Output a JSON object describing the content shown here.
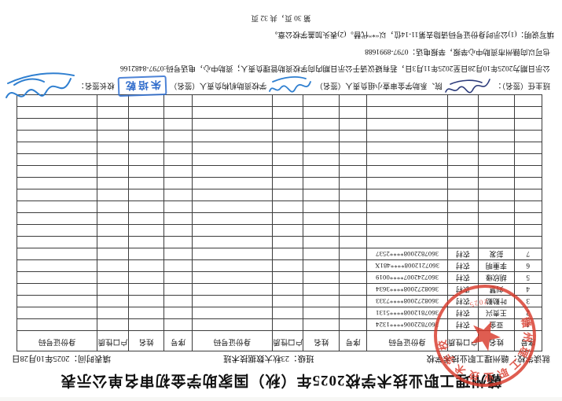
{
  "title": "赣州理工职业技术学校2025年（秋）国家助学金初审名单公示表",
  "meta": {
    "school_label": "就读学校：",
    "school": "赣州理工职业技术学校",
    "class_label": "班级：",
    "class_name": "23秋大数据技术班",
    "date_label": "填表时间：",
    "date": "2025年10月28日"
  },
  "table": {
    "columns": [
      "序号",
      "姓名",
      "户口性质",
      "身份证号码"
    ],
    "group_count": 3,
    "row_count": 20,
    "students": [
      {
        "no": "1",
        "name": "亚金",
        "hukou": "农村",
        "id_number": "3607822006****1324"
      },
      {
        "no": "2",
        "name": "王贵兴",
        "hukou": "农村",
        "id_number": "3607812008****5131"
      },
      {
        "no": "3",
        "name": "叶勤勤",
        "hukou": "农村",
        "id_number": "3608272008****7333"
      },
      {
        "no": "4",
        "name": "刘慧",
        "hukou": "农村",
        "id_number": "3608272008****3634"
      },
      {
        "no": "5",
        "name": "胡欣缘",
        "hukou": "农村",
        "id_number": "3607242007****0019"
      },
      {
        "no": "6",
        "name": "李重明",
        "hukou": "农村",
        "id_number": "3607212008****481X"
      },
      {
        "no": "7",
        "name": "彭发",
        "hukou": "农村",
        "id_number": "3607822008****2537"
      }
    ]
  },
  "signature_line": {
    "head_teacher_label": "班主任（签名）：",
    "review_group_label": "院、系助学金审查小组负责人（签名）",
    "aid_office_label": "学校资助机构负责人（签名）",
    "principal_label": "校长签名：",
    "aid_office_stamp": "朱培乾"
  },
  "notices": {
    "objection": "公示日期为2025年10月28日至2025年11月3日，若有疑议请于公示日期内向学校资助管理负责人；资助中心，电话号码:0797-8482166",
    "report": "也可以向赣州市资助中心举报，举报电话：0797-8991688",
    "instructions": "填写说明：(1)公示时身份证号码请隐去第11-14位，以“*”代替。(2)表头加盖学校公章。",
    "page_number": "第 30 页，共 32 页"
  },
  "seal": {
    "ring_text": "赣州理工职业技术学校",
    "code_fragment": "2025",
    "color": "#d93a2b"
  },
  "stamp_color": "#2f6fd0",
  "orientation_note": "document scanned upside-down (rotated 180 degrees)"
}
